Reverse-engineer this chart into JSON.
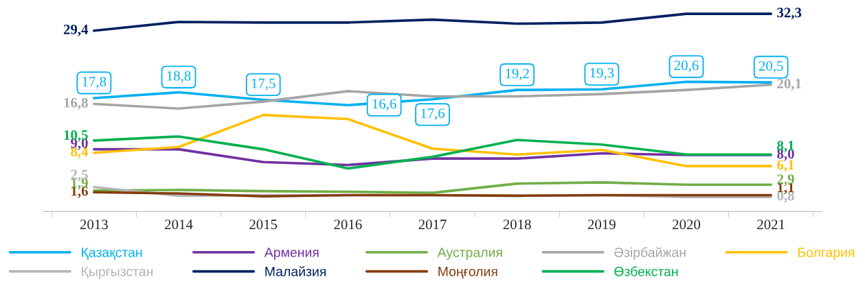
{
  "chart_data": {
    "type": "line",
    "categories": [
      "2013",
      "2014",
      "2015",
      "2016",
      "2017",
      "2018",
      "2019",
      "2020",
      "2021"
    ],
    "legend": "bottom",
    "grid": false,
    "marker": "none",
    "line_style": "solid",
    "series": [
      {
        "name": "Қазақстан",
        "color": "#00b0f0",
        "values": [
          17.8,
          18.8,
          17.5,
          16.6,
          17.6,
          19.2,
          19.3,
          20.6,
          20.5
        ],
        "value_labels": [
          "17,8",
          "18,8",
          "17,5",
          "16,6",
          "17,6",
          "19,2",
          "19,3",
          "20,6",
          "20,5"
        ]
      },
      {
        "name": "Армения",
        "color": "#7030a0",
        "values": [
          9.0,
          9.0,
          6.8,
          6.3,
          7.4,
          7.4,
          8.3,
          8.0,
          8.0
        ],
        "value_labels": [
          "9,0",
          null,
          null,
          null,
          null,
          null,
          null,
          null,
          "8,0"
        ]
      },
      {
        "name": "Аустралия",
        "color": "#70ad47",
        "values": [
          1.9,
          2.0,
          1.8,
          1.7,
          1.5,
          3.1,
          3.3,
          2.9,
          2.9
        ],
        "value_labels": [
          "1,9",
          null,
          null,
          null,
          null,
          null,
          null,
          null,
          "2,9"
        ]
      },
      {
        "name": "Әзірбайжан",
        "color": "#a5a5a5",
        "values": [
          16.8,
          16.0,
          17.2,
          19.0,
          18.1,
          18.1,
          18.5,
          19.2,
          20.1
        ],
        "value_labels": [
          "16,8",
          null,
          null,
          null,
          null,
          null,
          null,
          null,
          "20,1"
        ]
      },
      {
        "name": "Болгария",
        "color": "#ffc000",
        "values": [
          8.4,
          9.4,
          14.9,
          14.2,
          9.1,
          8.1,
          8.9,
          6.1,
          6.1
        ],
        "value_labels": [
          "8,4",
          null,
          null,
          null,
          null,
          null,
          null,
          null,
          "6,1"
        ]
      },
      {
        "name": "Қырғызстан",
        "color": "#b4b4b4",
        "values": [
          2.5,
          1.0,
          1.1,
          1.1,
          1.1,
          1.0,
          1.1,
          0.8,
          0.8
        ],
        "value_labels": [
          "2,5",
          null,
          null,
          null,
          null,
          null,
          null,
          null,
          "0,8"
        ]
      },
      {
        "name": "Малайзия",
        "color": "#002060",
        "values": [
          29.4,
          30.9,
          30.8,
          30.8,
          31.3,
          30.6,
          30.8,
          32.3,
          32.3
        ],
        "value_labels": [
          "29,4",
          null,
          null,
          null,
          null,
          null,
          null,
          null,
          "32,3"
        ]
      },
      {
        "name": "Моңғолия",
        "color": "#843c0c",
        "values": [
          1.6,
          1.4,
          0.9,
          1.1,
          1.1,
          1.0,
          1.1,
          1.1,
          1.1
        ],
        "value_labels": [
          "1,6",
          null,
          null,
          null,
          null,
          null,
          null,
          null,
          "1,1"
        ]
      },
      {
        "name": "Өзбекстан",
        "color": "#00b050",
        "values": [
          10.5,
          11.2,
          9.0,
          5.7,
          7.7,
          10.6,
          9.8,
          8.1,
          8.1
        ],
        "value_labels": [
          "10,5",
          null,
          null,
          null,
          null,
          null,
          null,
          null,
          "8,1"
        ]
      }
    ]
  }
}
